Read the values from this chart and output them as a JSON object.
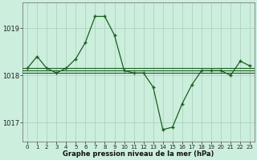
{
  "background_color": "#cceedd",
  "grid_color": "#aaccbb",
  "line_color": "#1a5e20",
  "title": "Graphe pression niveau de la mer (hPa)",
  "x_labels": [
    "0",
    "1",
    "2",
    "3",
    "4",
    "5",
    "6",
    "7",
    "8",
    "9",
    "10",
    "11",
    "12",
    "13",
    "14",
    "15",
    "16",
    "17",
    "18",
    "19",
    "20",
    "21",
    "22",
    "23"
  ],
  "x_values": [
    0,
    1,
    2,
    3,
    4,
    5,
    6,
    7,
    8,
    9,
    10,
    11,
    12,
    13,
    14,
    15,
    16,
    17,
    18,
    19,
    20,
    21,
    22,
    23
  ],
  "ylim": [
    1016.6,
    1019.55
  ],
  "yticks": [
    1017,
    1018,
    1019
  ],
  "flat_lines": [
    1018.05,
    1018.1,
    1018.15
  ],
  "main": [
    1018.15,
    1018.4,
    1018.15,
    1018.05,
    1018.15,
    1018.35,
    1018.7,
    1019.25,
    1019.25,
    1018.85,
    1018.1,
    1018.05,
    1018.05,
    1017.75,
    1016.85,
    1016.9,
    1017.4,
    1017.8,
    1018.1,
    1018.1,
    1018.1,
    1018.0,
    1018.3,
    1018.2
  ]
}
